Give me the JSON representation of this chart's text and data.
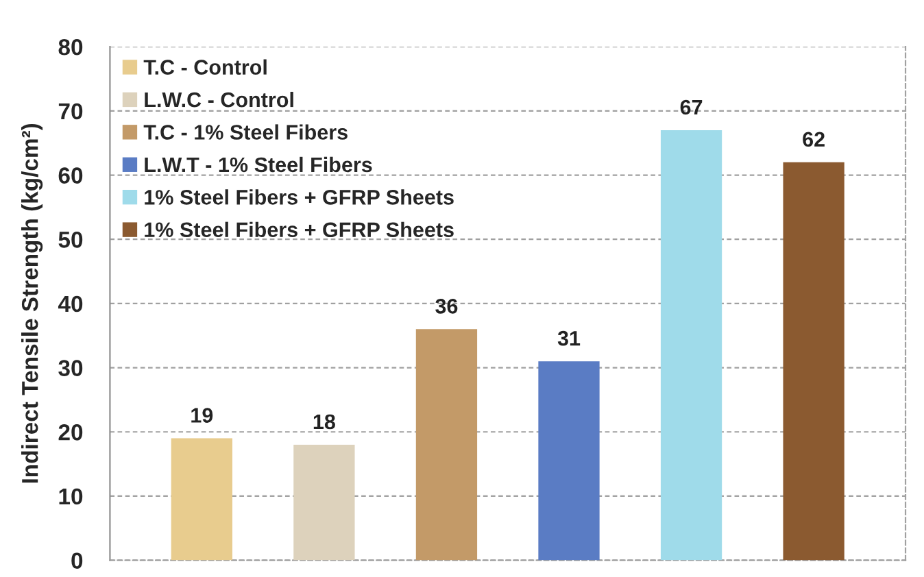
{
  "chart_data": {
    "type": "bar",
    "ylabel": "Indirect Tensile Strength (kg/cm²)",
    "categories": [
      null
    ],
    "series": [
      {
        "name": "T.C - Control",
        "color": "#e8cc8e",
        "values": [
          19
        ]
      },
      {
        "name": "L.W.C - Control",
        "color": "#ddd2bc",
        "values": [
          18
        ]
      },
      {
        "name": "T.C - 1% Steel Fibers",
        "color": "#c39a68",
        "values": [
          36
        ]
      },
      {
        "name": "L.W.T - 1% Steel Fibers",
        "color": "#5a7cc4",
        "values": [
          31
        ]
      },
      {
        "name": "1% Steel Fibers + GFRP Sheets",
        "color": "#9fdbea",
        "values": [
          67
        ]
      },
      {
        "name": "1% Steel Fibers + GFRP Sheets",
        "color": "#8b5a30",
        "values": [
          62
        ]
      }
    ],
    "ylim": [
      0,
      80
    ],
    "yticks": [
      0,
      10,
      20,
      30,
      40,
      50,
      60,
      70,
      80
    ],
    "grid": "y",
    "legend": "top left",
    "data_labels": true
  }
}
